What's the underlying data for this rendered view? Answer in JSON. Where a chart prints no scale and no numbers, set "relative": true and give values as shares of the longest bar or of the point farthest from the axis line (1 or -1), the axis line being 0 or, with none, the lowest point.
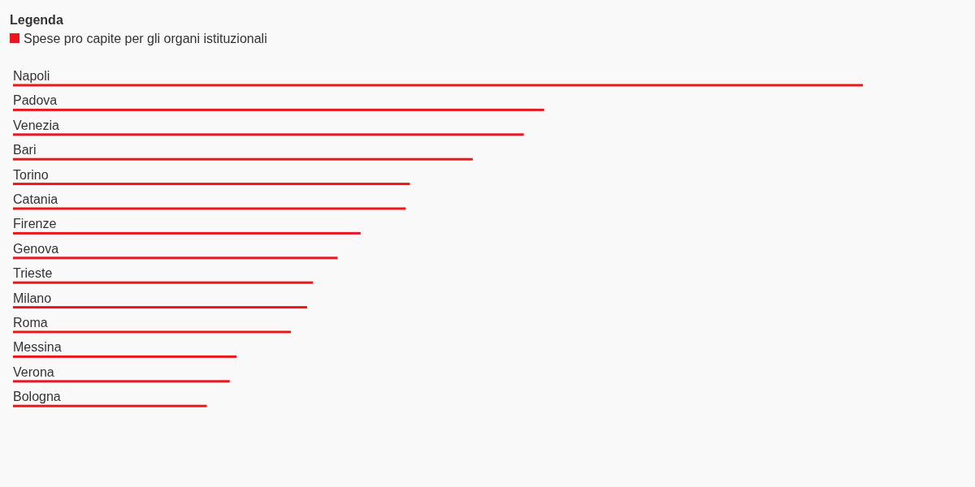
{
  "chart_data": {
    "type": "bar",
    "orientation": "horizontal",
    "relative": true,
    "legend": "top left",
    "legend_title": "Legenda",
    "categories": [
      "Napoli",
      "Padova",
      "Venezia",
      "Bari",
      "Torino",
      "Catania",
      "Firenze",
      "Genova",
      "Trieste",
      "Milano",
      "Roma",
      "Messina",
      "Verona",
      "Bologna"
    ],
    "series": [
      {
        "name": "Spese pro capite per gli organi istituzionali",
        "color": "#e8191e",
        "values": [
          1,
          0.625,
          0.601,
          0.541,
          0.467,
          0.462,
          0.409,
          0.382,
          0.353,
          0.346,
          0.327,
          0.263,
          0.255,
          0.228
        ]
      }
    ]
  }
}
